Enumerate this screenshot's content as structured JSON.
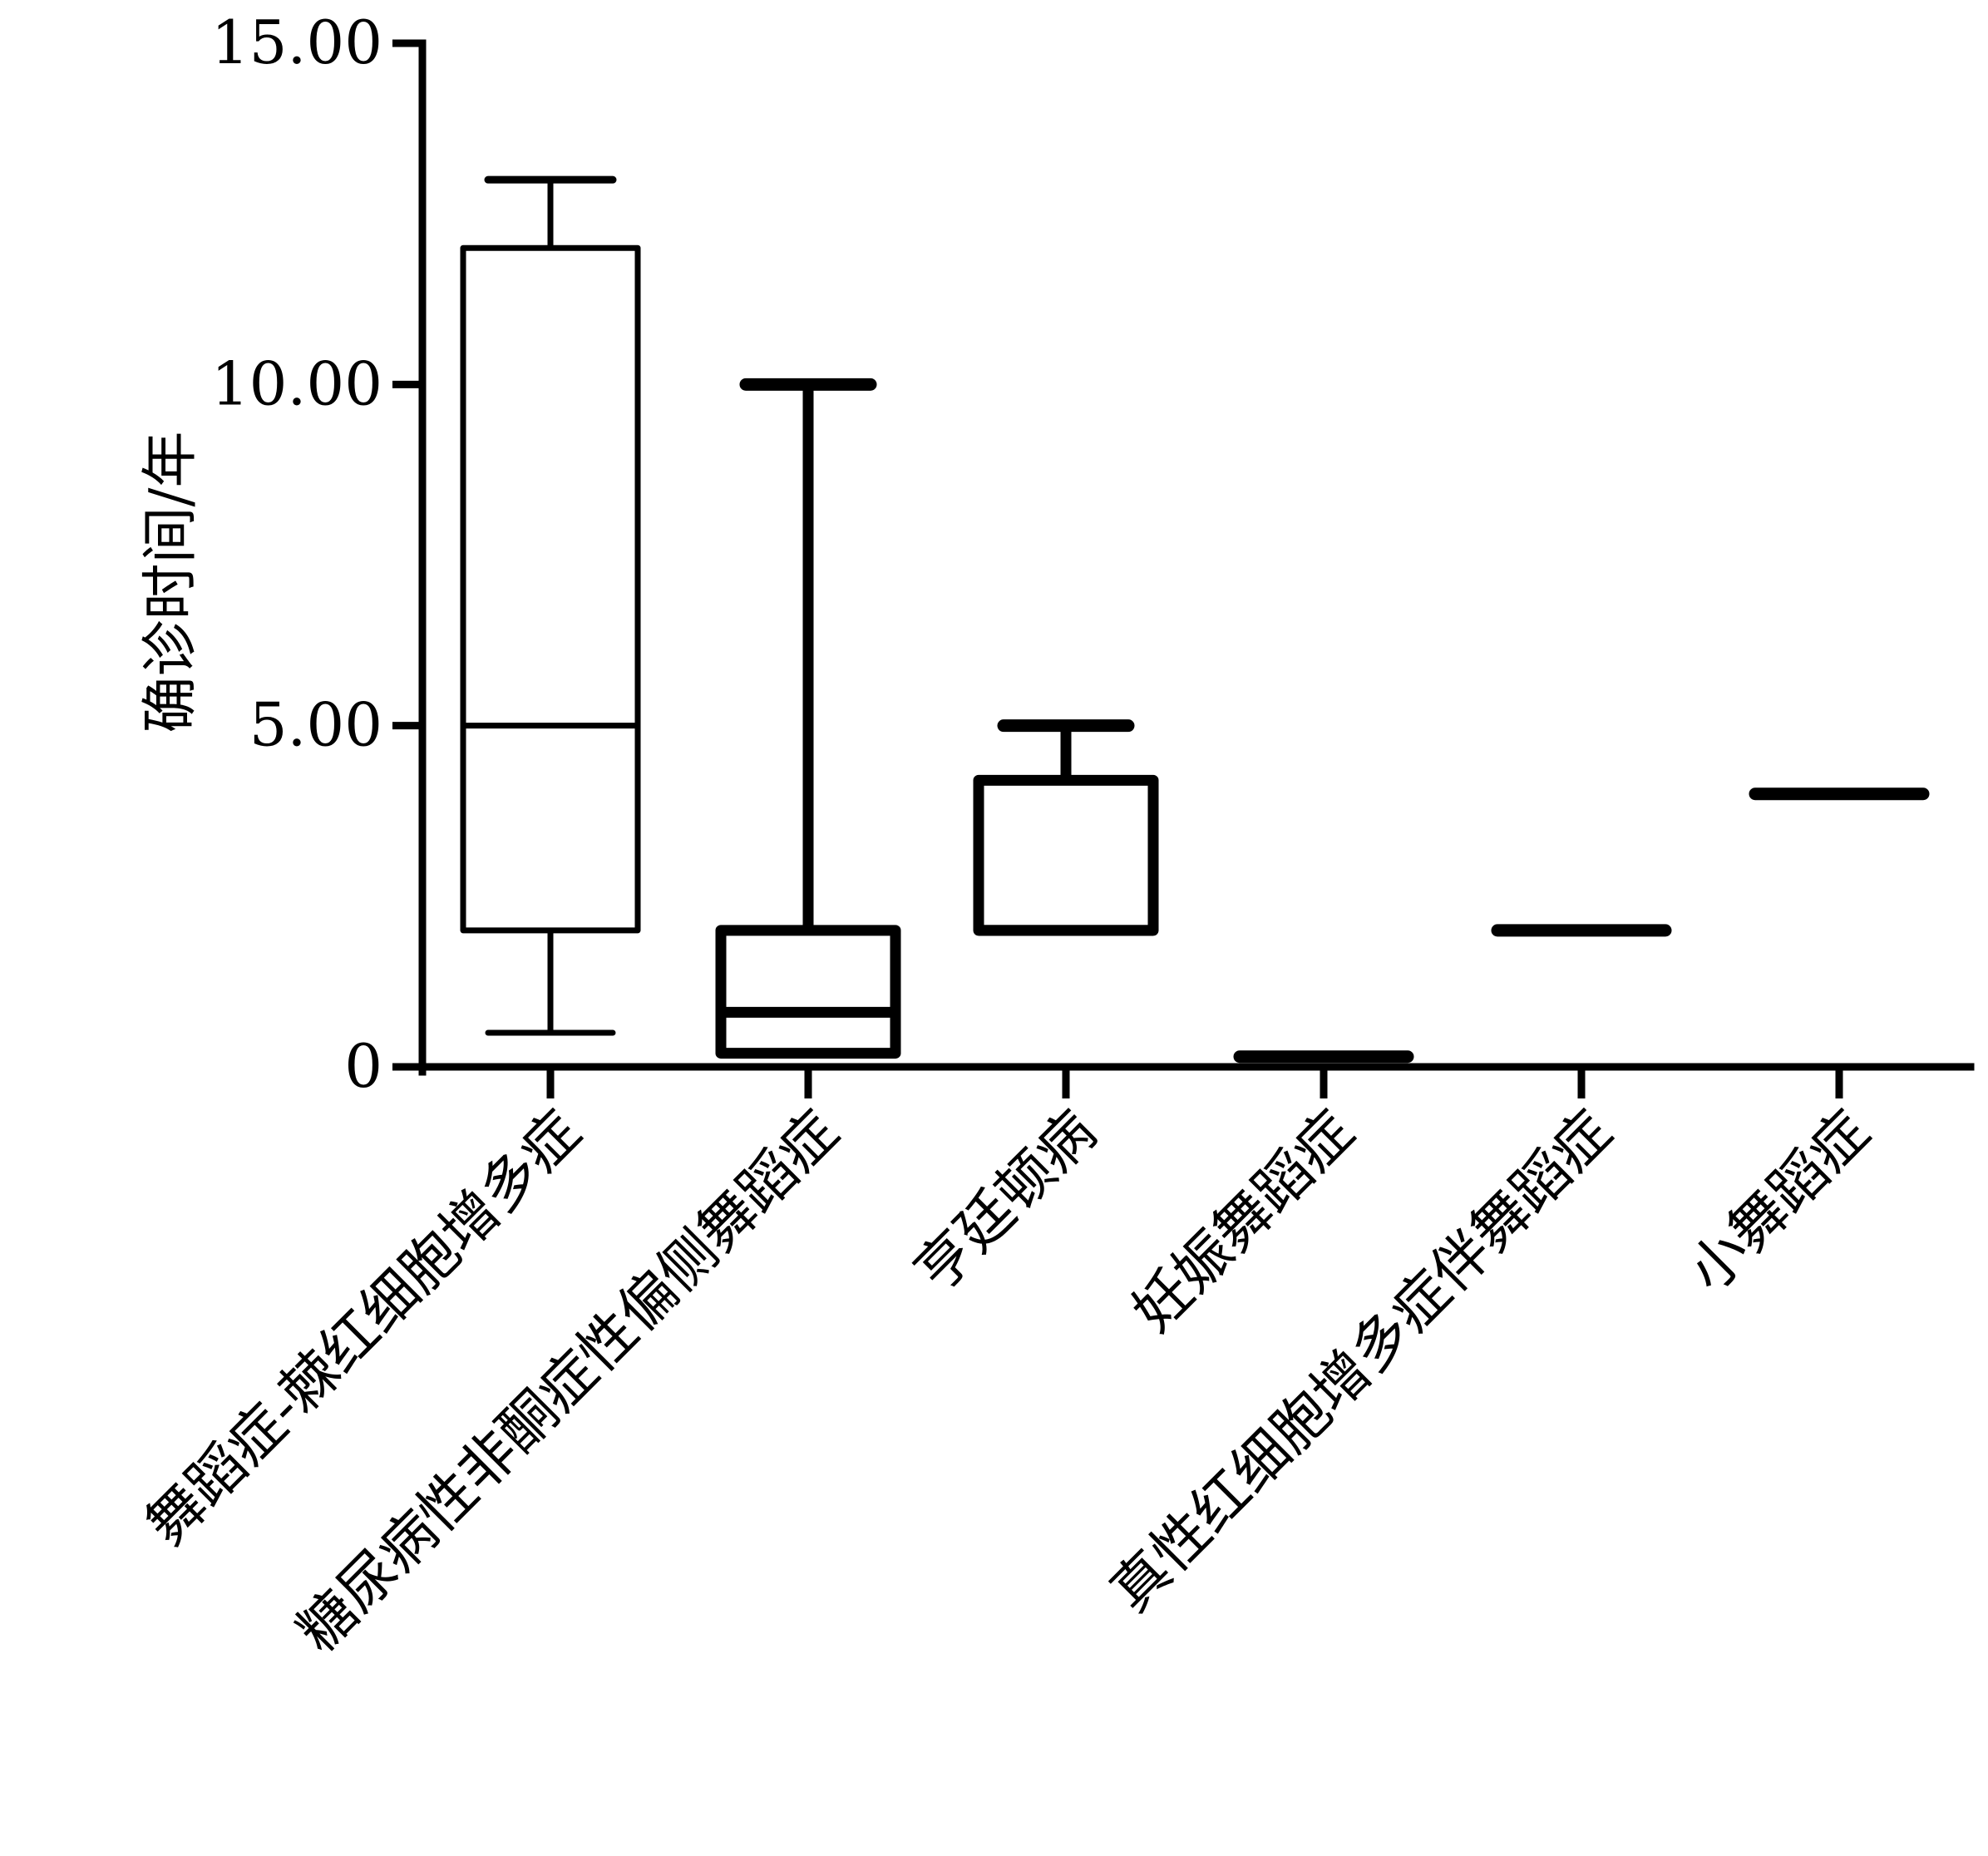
{
  "chart_data": {
    "type": "box",
    "title": "",
    "xlabel": "",
    "ylabel": "确诊时间/年",
    "ylim": [
      0,
      15
    ],
    "yticks": [
      {
        "value": 0,
        "label": "0"
      },
      {
        "value": 5,
        "label": "5.00"
      },
      {
        "value": 10,
        "label": "10.00"
      },
      {
        "value": 15,
        "label": "15.00"
      }
    ],
    "grid": false,
    "categories": [
      "舞蹈症-棘红细胞增多症",
      "糖尿病性非酮症性偏侧舞蹈症",
      "亨廷顿病",
      "妊娠舞蹈症",
      "真性红细胞增多症伴舞蹈症",
      "小舞蹈症"
    ],
    "boxes": [
      {
        "min": 0.5,
        "q1": 2.0,
        "median": 5.0,
        "q3": 12.0,
        "max": 13.0
      },
      {
        "min": 0.2,
        "q1": 0.2,
        "median": 0.8,
        "q3": 2.0,
        "max": 10.0
      },
      {
        "min": 2.0,
        "q1": 2.0,
        "median": 2.0,
        "q3": 4.2,
        "max": 5.0
      },
      {
        "min": 0.15,
        "q1": 0.15,
        "median": 0.15,
        "q3": 0.15,
        "max": 0.15
      },
      {
        "min": 2.0,
        "q1": 2.0,
        "median": 2.0,
        "q3": 2.0,
        "max": 2.0
      },
      {
        "min": 4.0,
        "q1": 4.0,
        "median": 4.0,
        "q3": 4.0,
        "max": 4.0
      }
    ],
    "colors": {
      "stroke": "#000000",
      "background": "#ffffff"
    }
  }
}
